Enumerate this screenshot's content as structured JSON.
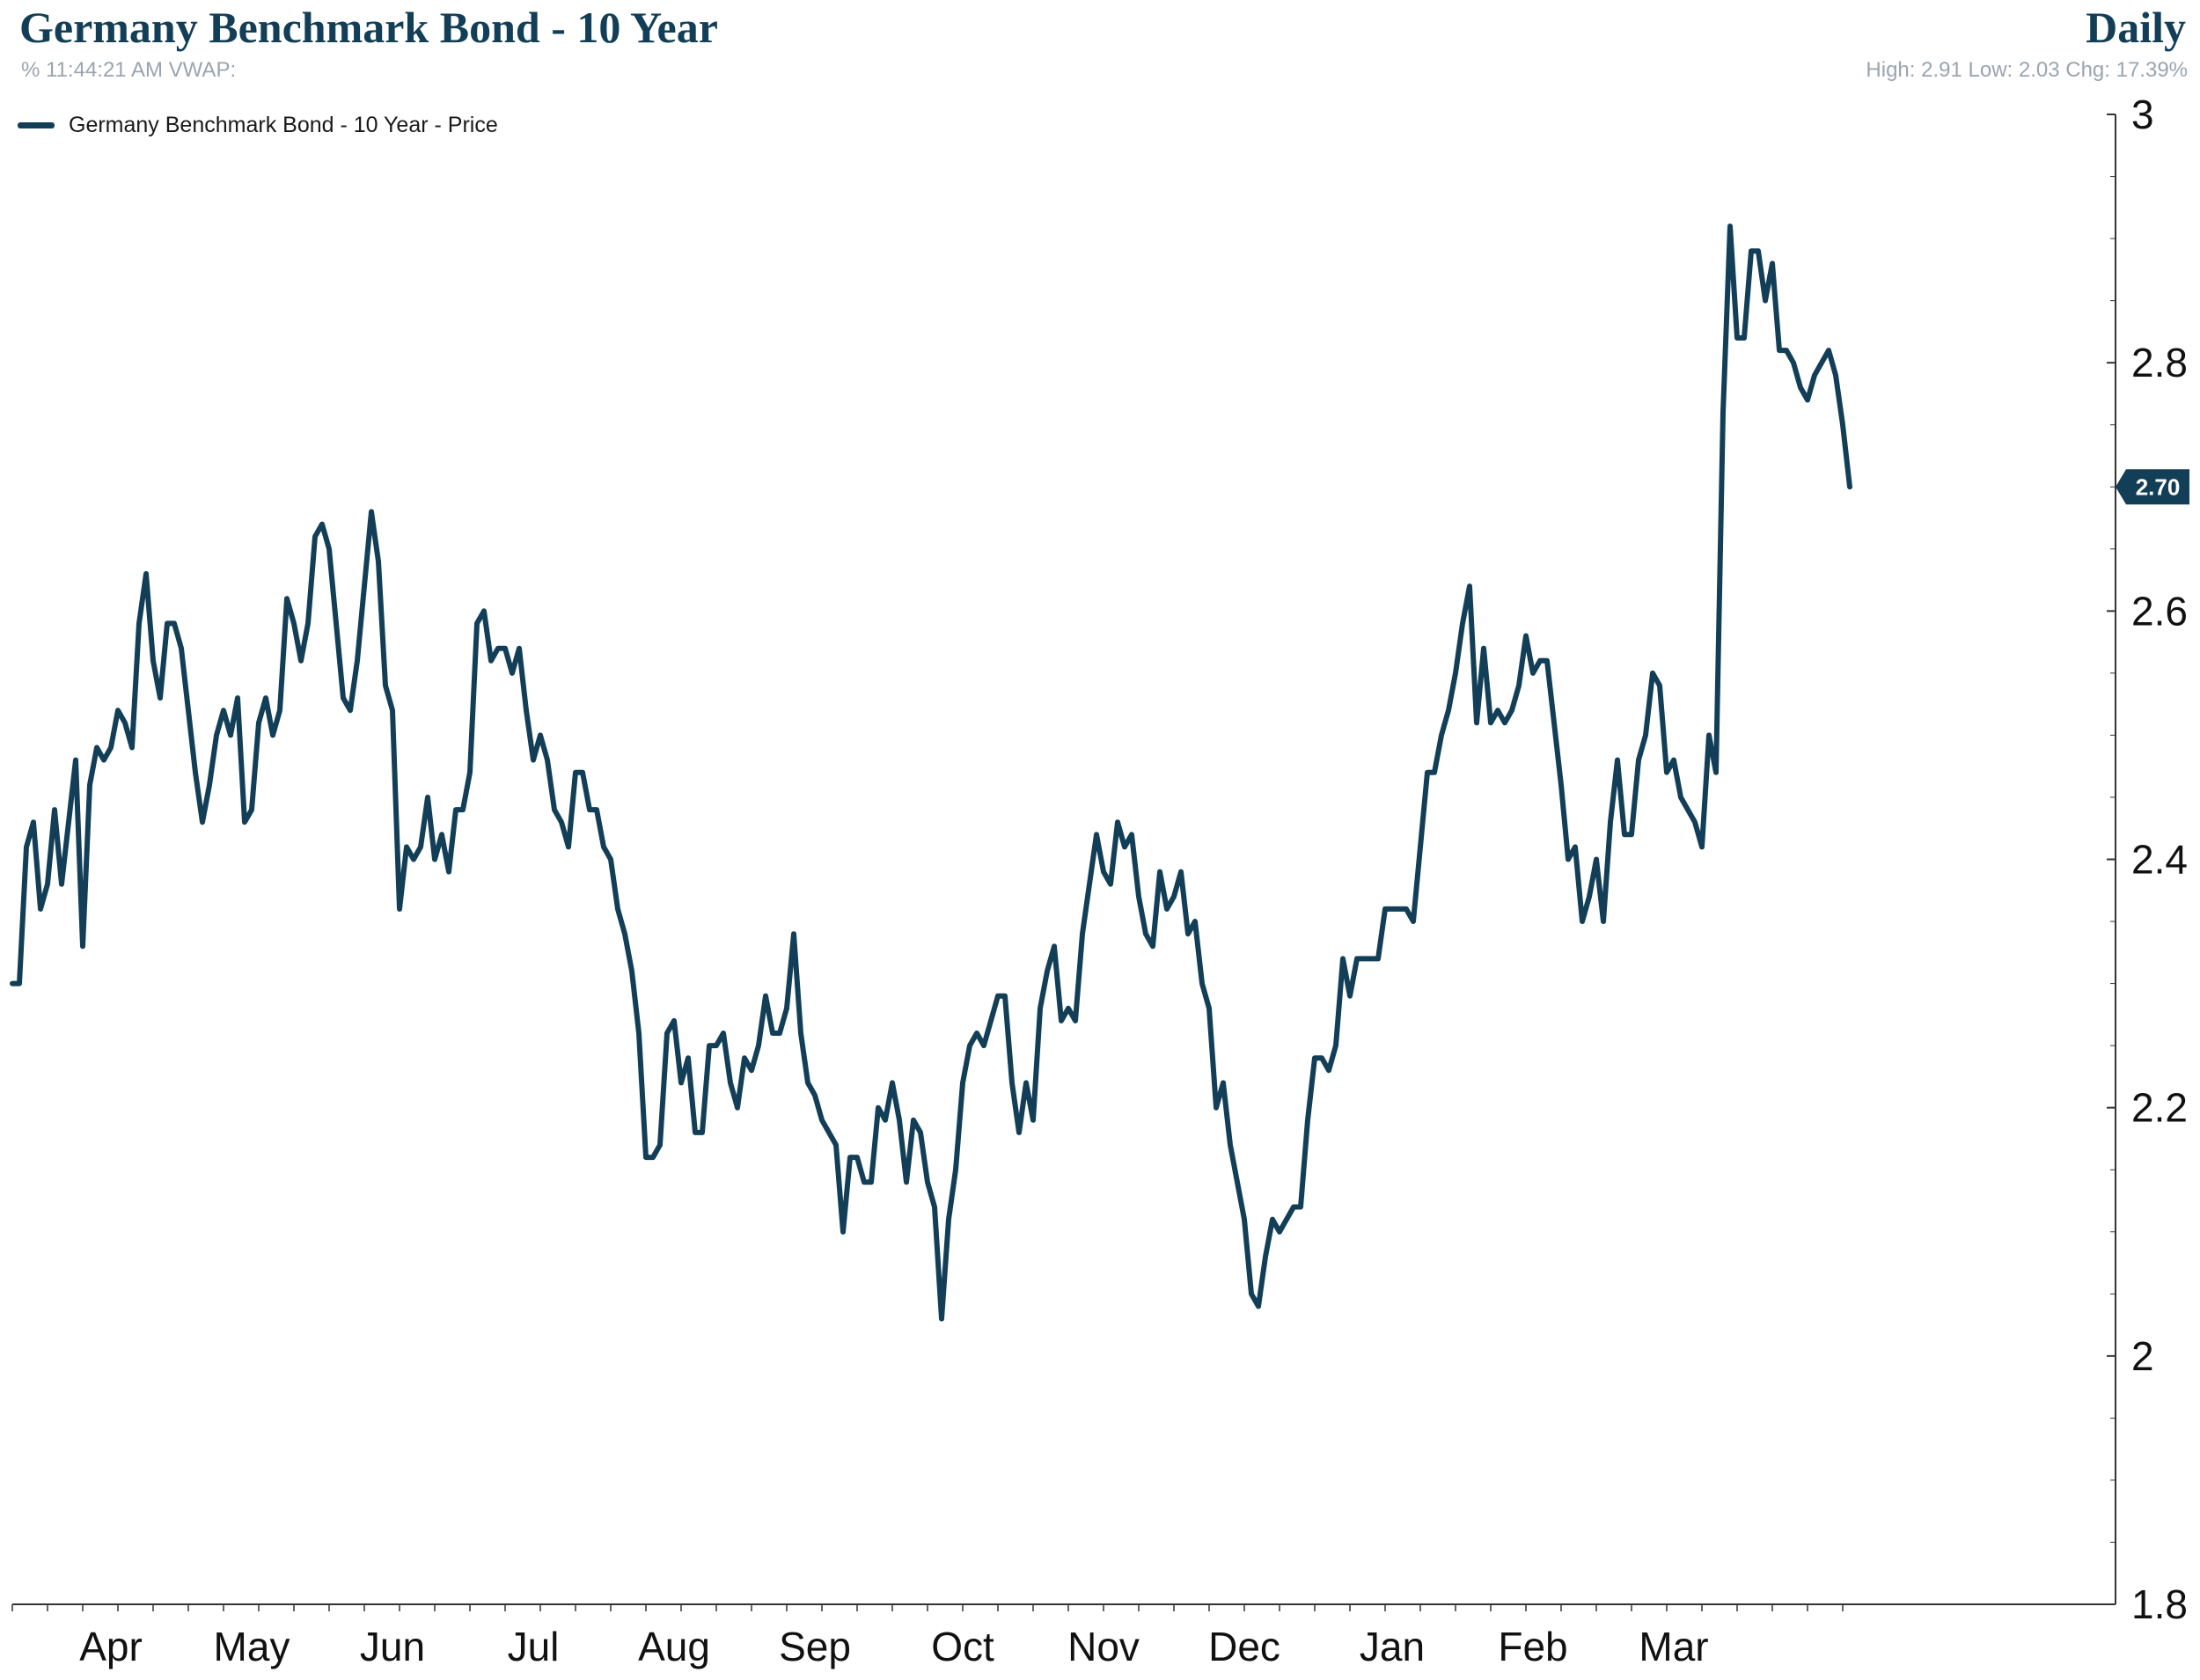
{
  "header": {
    "title": "Germany Benchmark Bond - 10 Year",
    "period": "Daily",
    "subtitle": "% 11:44:21 AM VWAP:",
    "stats": "High: 2.91 Low: 2.03 Chg: 17.39%"
  },
  "legend": {
    "label": "Germany Benchmark Bond - 10 Year - Price"
  },
  "colors": {
    "line": "#123f57",
    "axis": "#333333",
    "text": "#111111",
    "muted": "#9aa4b1"
  },
  "chart_data": {
    "type": "line",
    "title": "Germany Benchmark Bond - 10 Year",
    "xlabel": "",
    "ylabel": "",
    "ylim": [
      1.8,
      3.0
    ],
    "yticks": [
      1.8,
      2.0,
      2.2,
      2.4,
      2.6,
      2.8,
      3.0
    ],
    "ytick_labels": [
      "1.8",
      "2",
      "2.2",
      "2.4",
      "2.6",
      "2.8",
      "3"
    ],
    "y_axis_side": "right",
    "months": [
      "Apr",
      "May",
      "Jun",
      "Jul",
      "Aug",
      "Sep",
      "Oct",
      "Nov",
      "Dec",
      "Jan",
      "Feb",
      "Mar"
    ],
    "month_label_index": [
      14,
      34,
      54,
      74,
      94,
      114,
      135,
      155,
      175,
      196,
      216,
      236
    ],
    "last_value_label": "2.70",
    "series": [
      {
        "name": "Germany Benchmark Bond - 10 Year - Price",
        "values": [
          2.3,
          2.3,
          2.41,
          2.43,
          2.36,
          2.38,
          2.44,
          2.38,
          2.43,
          2.48,
          2.33,
          2.46,
          2.49,
          2.48,
          2.49,
          2.52,
          2.51,
          2.49,
          2.59,
          2.63,
          2.56,
          2.53,
          2.59,
          2.59,
          2.57,
          2.52,
          2.47,
          2.43,
          2.46,
          2.5,
          2.52,
          2.5,
          2.53,
          2.43,
          2.44,
          2.51,
          2.53,
          2.5,
          2.52,
          2.61,
          2.59,
          2.56,
          2.59,
          2.66,
          2.67,
          2.65,
          2.59,
          2.53,
          2.52,
          2.56,
          2.62,
          2.68,
          2.64,
          2.54,
          2.52,
          2.36,
          2.41,
          2.4,
          2.41,
          2.45,
          2.4,
          2.42,
          2.39,
          2.44,
          2.44,
          2.47,
          2.59,
          2.6,
          2.56,
          2.57,
          2.57,
          2.55,
          2.57,
          2.52,
          2.48,
          2.5,
          2.48,
          2.44,
          2.43,
          2.41,
          2.47,
          2.47,
          2.44,
          2.44,
          2.41,
          2.4,
          2.36,
          2.34,
          2.31,
          2.26,
          2.16,
          2.16,
          2.17,
          2.26,
          2.27,
          2.22,
          2.24,
          2.18,
          2.18,
          2.25,
          2.25,
          2.26,
          2.22,
          2.2,
          2.24,
          2.23,
          2.25,
          2.29,
          2.26,
          2.26,
          2.28,
          2.34,
          2.26,
          2.22,
          2.21,
          2.19,
          2.18,
          2.17,
          2.1,
          2.16,
          2.16,
          2.14,
          2.14,
          2.2,
          2.19,
          2.22,
          2.19,
          2.14,
          2.19,
          2.18,
          2.14,
          2.12,
          2.03,
          2.11,
          2.15,
          2.22,
          2.25,
          2.26,
          2.25,
          2.27,
          2.29,
          2.29,
          2.22,
          2.18,
          2.22,
          2.19,
          2.28,
          2.31,
          2.33,
          2.27,
          2.28,
          2.27,
          2.34,
          2.38,
          2.42,
          2.39,
          2.38,
          2.43,
          2.41,
          2.42,
          2.37,
          2.34,
          2.33,
          2.39,
          2.36,
          2.37,
          2.39,
          2.34,
          2.35,
          2.3,
          2.28,
          2.2,
          2.22,
          2.17,
          2.14,
          2.11,
          2.05,
          2.04,
          2.08,
          2.11,
          2.1,
          2.11,
          2.12,
          2.12,
          2.19,
          2.24,
          2.24,
          2.23,
          2.25,
          2.32,
          2.29,
          2.32,
          2.32,
          2.32,
          2.32,
          2.36,
          2.36,
          2.36,
          2.36,
          2.35,
          2.41,
          2.47,
          2.47,
          2.5,
          2.52,
          2.55,
          2.59,
          2.62,
          2.51,
          2.57,
          2.51,
          2.52,
          2.51,
          2.52,
          2.54,
          2.58,
          2.55,
          2.56,
          2.56,
          2.51,
          2.46,
          2.4,
          2.41,
          2.35,
          2.37,
          2.4,
          2.35,
          2.43,
          2.48,
          2.42,
          2.42,
          2.48,
          2.5,
          2.55,
          2.54,
          2.47,
          2.48,
          2.45,
          2.44,
          2.43,
          2.41,
          2.5,
          2.47,
          2.76,
          2.91,
          2.82,
          2.82,
          2.89,
          2.89,
          2.85,
          2.88,
          2.81,
          2.81,
          2.8,
          2.78,
          2.77,
          2.79,
          2.8,
          2.81,
          2.79,
          2.75,
          2.7
        ]
      }
    ]
  }
}
